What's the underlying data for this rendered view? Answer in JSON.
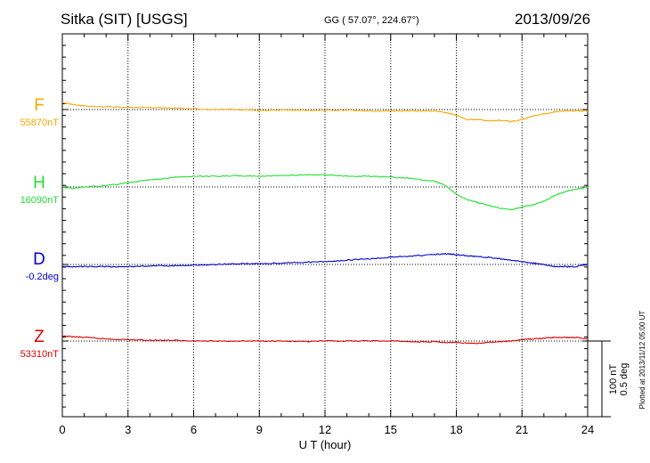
{
  "header": {
    "station": "Sitka (SIT)  [USGS]",
    "coords": "GG ( 57.07°, 224.67°)",
    "date": "2013/09/26"
  },
  "side_note": "Plotted at 2013/11/12 05:00 UT",
  "scale_bar": {
    "label_nt": "100 nT",
    "label_deg": "0.5 deg"
  },
  "chart_data": {
    "type": "line",
    "xlabel": "U T (hour)",
    "xlim": [
      0,
      24
    ],
    "xticks": [
      0,
      3,
      6,
      9,
      12,
      15,
      18,
      21,
      24
    ],
    "grid": true,
    "scale_note": "100 nT = 0.5 deg per scale bar",
    "series": [
      {
        "name": "F",
        "baseline_label": "55870nT",
        "color": "#F5A800",
        "x": [
          0,
          0.5,
          1,
          2,
          3,
          4,
          5,
          6,
          7,
          8,
          9,
          10,
          11,
          12,
          13,
          14,
          15,
          16,
          17,
          17.5,
          18,
          18.5,
          19,
          19.5,
          20,
          20.5,
          21,
          21.5,
          22,
          22.5,
          23,
          23.5,
          24
        ],
        "values": [
          10,
          7,
          5,
          4,
          3,
          3,
          2,
          1,
          0,
          0,
          -1,
          -1,
          -1,
          -1,
          -1,
          -2,
          -2,
          -2,
          -2,
          -4,
          -8,
          -14,
          -14,
          -16,
          -15,
          -17,
          -14,
          -9,
          -6,
          -3,
          -2,
          -2,
          -2
        ]
      },
      {
        "name": "H",
        "baseline_label": "16090nT",
        "color": "#22DD33",
        "x": [
          0,
          0.5,
          1,
          2,
          3,
          4,
          5,
          6,
          7,
          8,
          9,
          10,
          11,
          12,
          13,
          14,
          15,
          16,
          17,
          17.5,
          18,
          18.5,
          19,
          19.5,
          20,
          20.5,
          21,
          21.5,
          22,
          22.5,
          23,
          23.5,
          24
        ],
        "values": [
          0,
          -2,
          0,
          2,
          6,
          10,
          13,
          15,
          15,
          16,
          15,
          16,
          17,
          17,
          15,
          15,
          14,
          12,
          8,
          2,
          -10,
          -18,
          -22,
          -26,
          -30,
          -32,
          -28,
          -25,
          -20,
          -12,
          -6,
          -3,
          0
        ]
      },
      {
        "name": "D",
        "baseline_label": "-0.2deg",
        "color": "#0000CC",
        "x": [
          0,
          0.5,
          1,
          2,
          3,
          4,
          5,
          6,
          7,
          8,
          9,
          10,
          11,
          12,
          13,
          14,
          15,
          16,
          17,
          17.5,
          18,
          18.5,
          19,
          19.5,
          20,
          20.5,
          21,
          21.5,
          22,
          22.5,
          23,
          23.5,
          24
        ],
        "values": [
          -3,
          -3,
          -3,
          -3,
          -3,
          -2,
          -2,
          -1,
          0,
          1,
          1,
          2,
          3,
          4,
          6,
          8,
          10,
          12,
          14,
          15,
          14,
          12,
          11,
          10,
          8,
          6,
          4,
          2,
          0,
          -3,
          -3,
          -3,
          0
        ]
      },
      {
        "name": "Z",
        "baseline_label": "53310nT",
        "color": "#DD0000",
        "x": [
          0,
          0.5,
          1,
          2,
          3,
          4,
          5,
          6,
          7,
          8,
          9,
          10,
          11,
          12,
          13,
          14,
          15,
          16,
          17,
          17.5,
          18,
          18.5,
          19,
          19.5,
          20,
          20.5,
          21,
          21.5,
          22,
          22.5,
          23,
          23.5,
          24
        ],
        "values": [
          7,
          6,
          5,
          3,
          2,
          1,
          1,
          0,
          0,
          0,
          0,
          0,
          -1,
          0,
          0,
          0,
          0,
          -1,
          -1,
          -2,
          -2,
          -3,
          -3,
          -2,
          -1,
          0,
          2,
          3,
          4,
          5,
          5,
          5,
          3
        ]
      }
    ]
  }
}
